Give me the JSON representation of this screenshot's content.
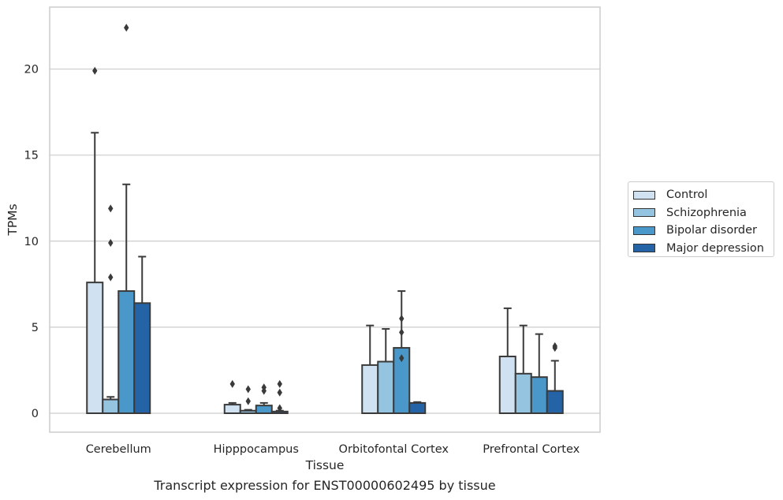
{
  "caption": "Transcript expression for ENST00000602495 by tissue",
  "chart_data": {
    "type": "bar",
    "xlabel": "Tissue",
    "ylabel": "TPMs",
    "ylim": [
      -1.1,
      23.6
    ],
    "yticks": [
      0,
      5,
      10,
      15,
      20
    ],
    "grid": "horizontal",
    "legend_position": "right",
    "categories": [
      "Cerebellum",
      "Hipppocampus",
      "Orbitofontal Cortex",
      "Prefrontal Cortex"
    ],
    "series": [
      {
        "name": "Control",
        "color": "#d0e1f2",
        "values": [
          7.6,
          0.5,
          2.8,
          3.3
        ],
        "caps": [
          16.3,
          0.6,
          5.1,
          6.1
        ],
        "outliers": [
          [
            19.9
          ],
          [
            1.7
          ],
          [],
          []
        ]
      },
      {
        "name": "Schizophrenia",
        "color": "#94c4df",
        "values": [
          0.8,
          0.15,
          3.0,
          2.3
        ],
        "caps": [
          0.95,
          0.2,
          4.9,
          5.1
        ],
        "outliers": [
          [
            11.9,
            9.9,
            7.9
          ],
          [
            1.4,
            0.7
          ],
          [],
          []
        ]
      },
      {
        "name": "Bipolar disorder",
        "color": "#4a98c9",
        "values": [
          7.1,
          0.45,
          3.8,
          2.1
        ],
        "caps": [
          13.3,
          0.6,
          7.1,
          4.6
        ],
        "outliers": [
          [
            22.4
          ],
          [
            1.5,
            1.3
          ],
          [
            5.5,
            4.7,
            3.2
          ],
          []
        ]
      },
      {
        "name": "Major depression",
        "color": "#2464a6",
        "values": [
          6.4,
          0.1,
          0.6,
          1.3
        ],
        "caps": [
          9.1,
          0.15,
          0.65,
          3.05
        ],
        "outliers": [
          [],
          [
            1.7,
            1.2,
            0.3
          ],
          [],
          [
            3.9,
            3.8
          ]
        ]
      }
    ]
  }
}
